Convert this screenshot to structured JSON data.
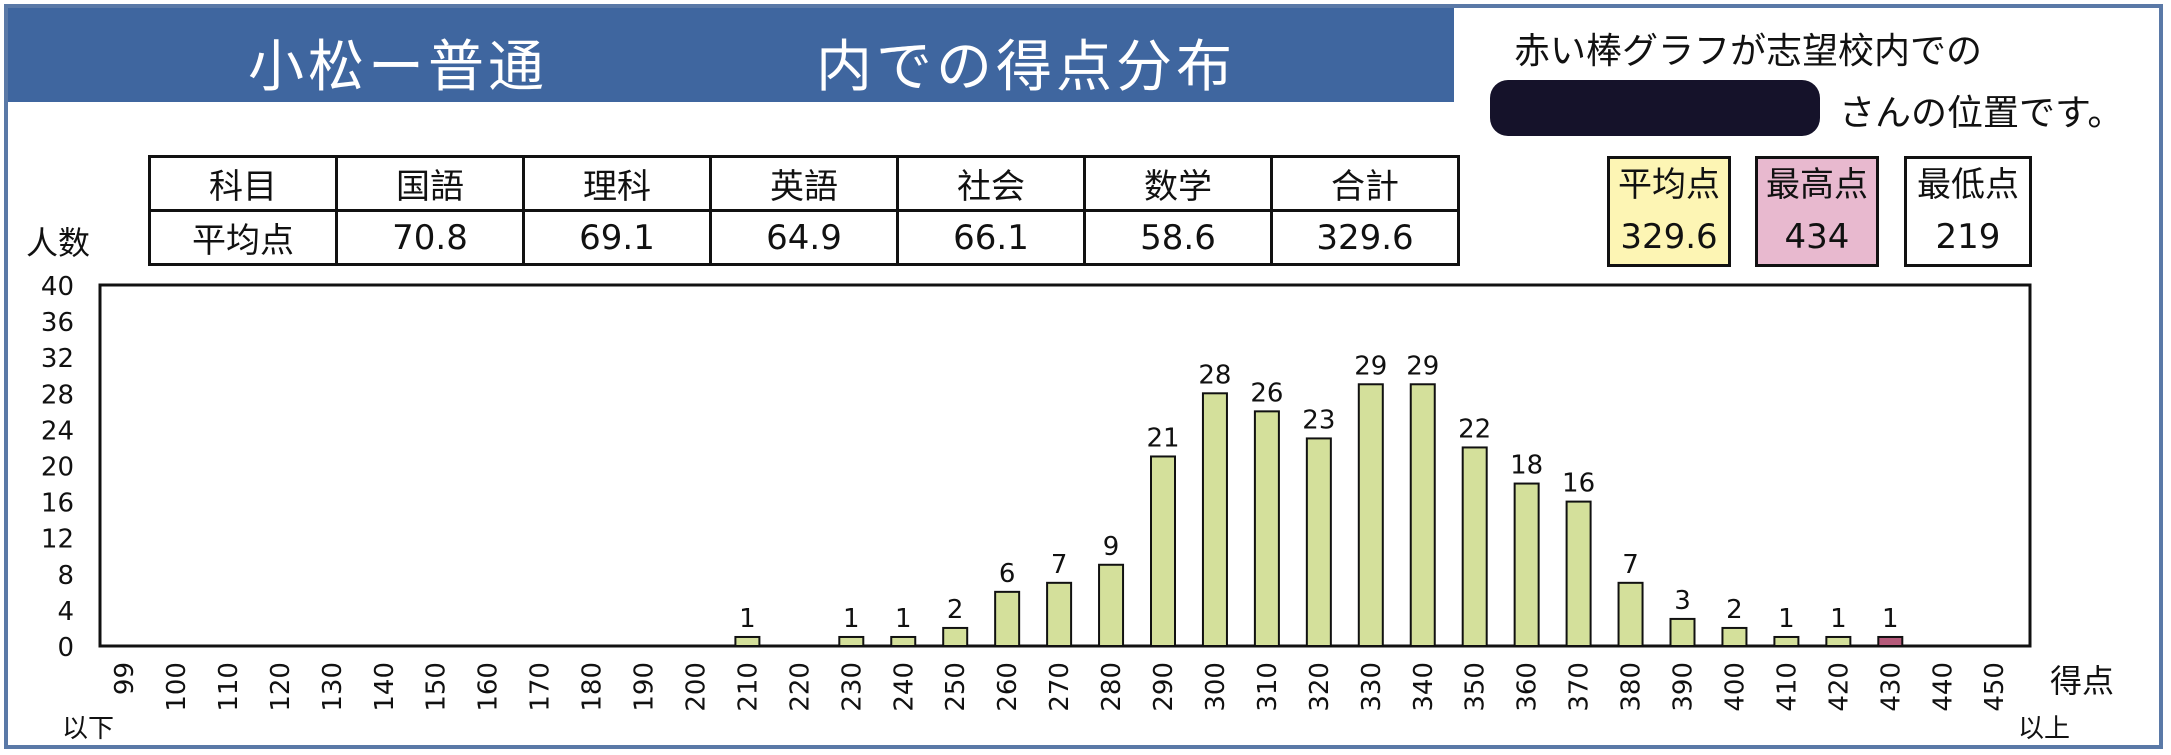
{
  "title": {
    "left": "小松ー普通",
    "right": "内での得点分布"
  },
  "note": {
    "line1": "赤い棒グラフが志望校内での",
    "line2": "さんの位置です。"
  },
  "table": {
    "headers": [
      "科目",
      "国語",
      "理科",
      "英語",
      "社会",
      "数学",
      "合計"
    ],
    "row_label": "平均点",
    "values": [
      "70.8",
      "69.1",
      "64.9",
      "66.1",
      "58.6",
      "329.6"
    ]
  },
  "stats": {
    "avg": {
      "label": "平均点",
      "value": "329.6"
    },
    "max": {
      "label": "最高点",
      "value": "434"
    },
    "min": {
      "label": "最低点",
      "value": "219"
    }
  },
  "colors": {
    "bar": "#d4e09b",
    "highlight_bar": "#b55a7a",
    "title_bg": "#3f669f"
  },
  "chart_data": {
    "type": "bar",
    "ylabel": "人数",
    "xlabel": "得点",
    "x_first_sub": "以下",
    "x_last_sub": "以上",
    "ylim": [
      0,
      40
    ],
    "yticks": [
      0,
      4,
      8,
      12,
      16,
      20,
      24,
      28,
      32,
      36,
      40
    ],
    "categories": [
      "99",
      "100",
      "110",
      "120",
      "130",
      "140",
      "150",
      "160",
      "170",
      "180",
      "190",
      "200",
      "210",
      "220",
      "230",
      "240",
      "250",
      "260",
      "270",
      "280",
      "290",
      "300",
      "310",
      "320",
      "330",
      "340",
      "350",
      "360",
      "370",
      "380",
      "390",
      "400",
      "410",
      "420",
      "430",
      "440",
      "450"
    ],
    "values": [
      0,
      0,
      0,
      0,
      0,
      0,
      0,
      0,
      0,
      0,
      0,
      0,
      1,
      0,
      1,
      1,
      2,
      6,
      7,
      9,
      21,
      28,
      26,
      23,
      29,
      29,
      22,
      18,
      16,
      7,
      3,
      2,
      1,
      1,
      1,
      0,
      0
    ],
    "highlight_category": "430"
  }
}
